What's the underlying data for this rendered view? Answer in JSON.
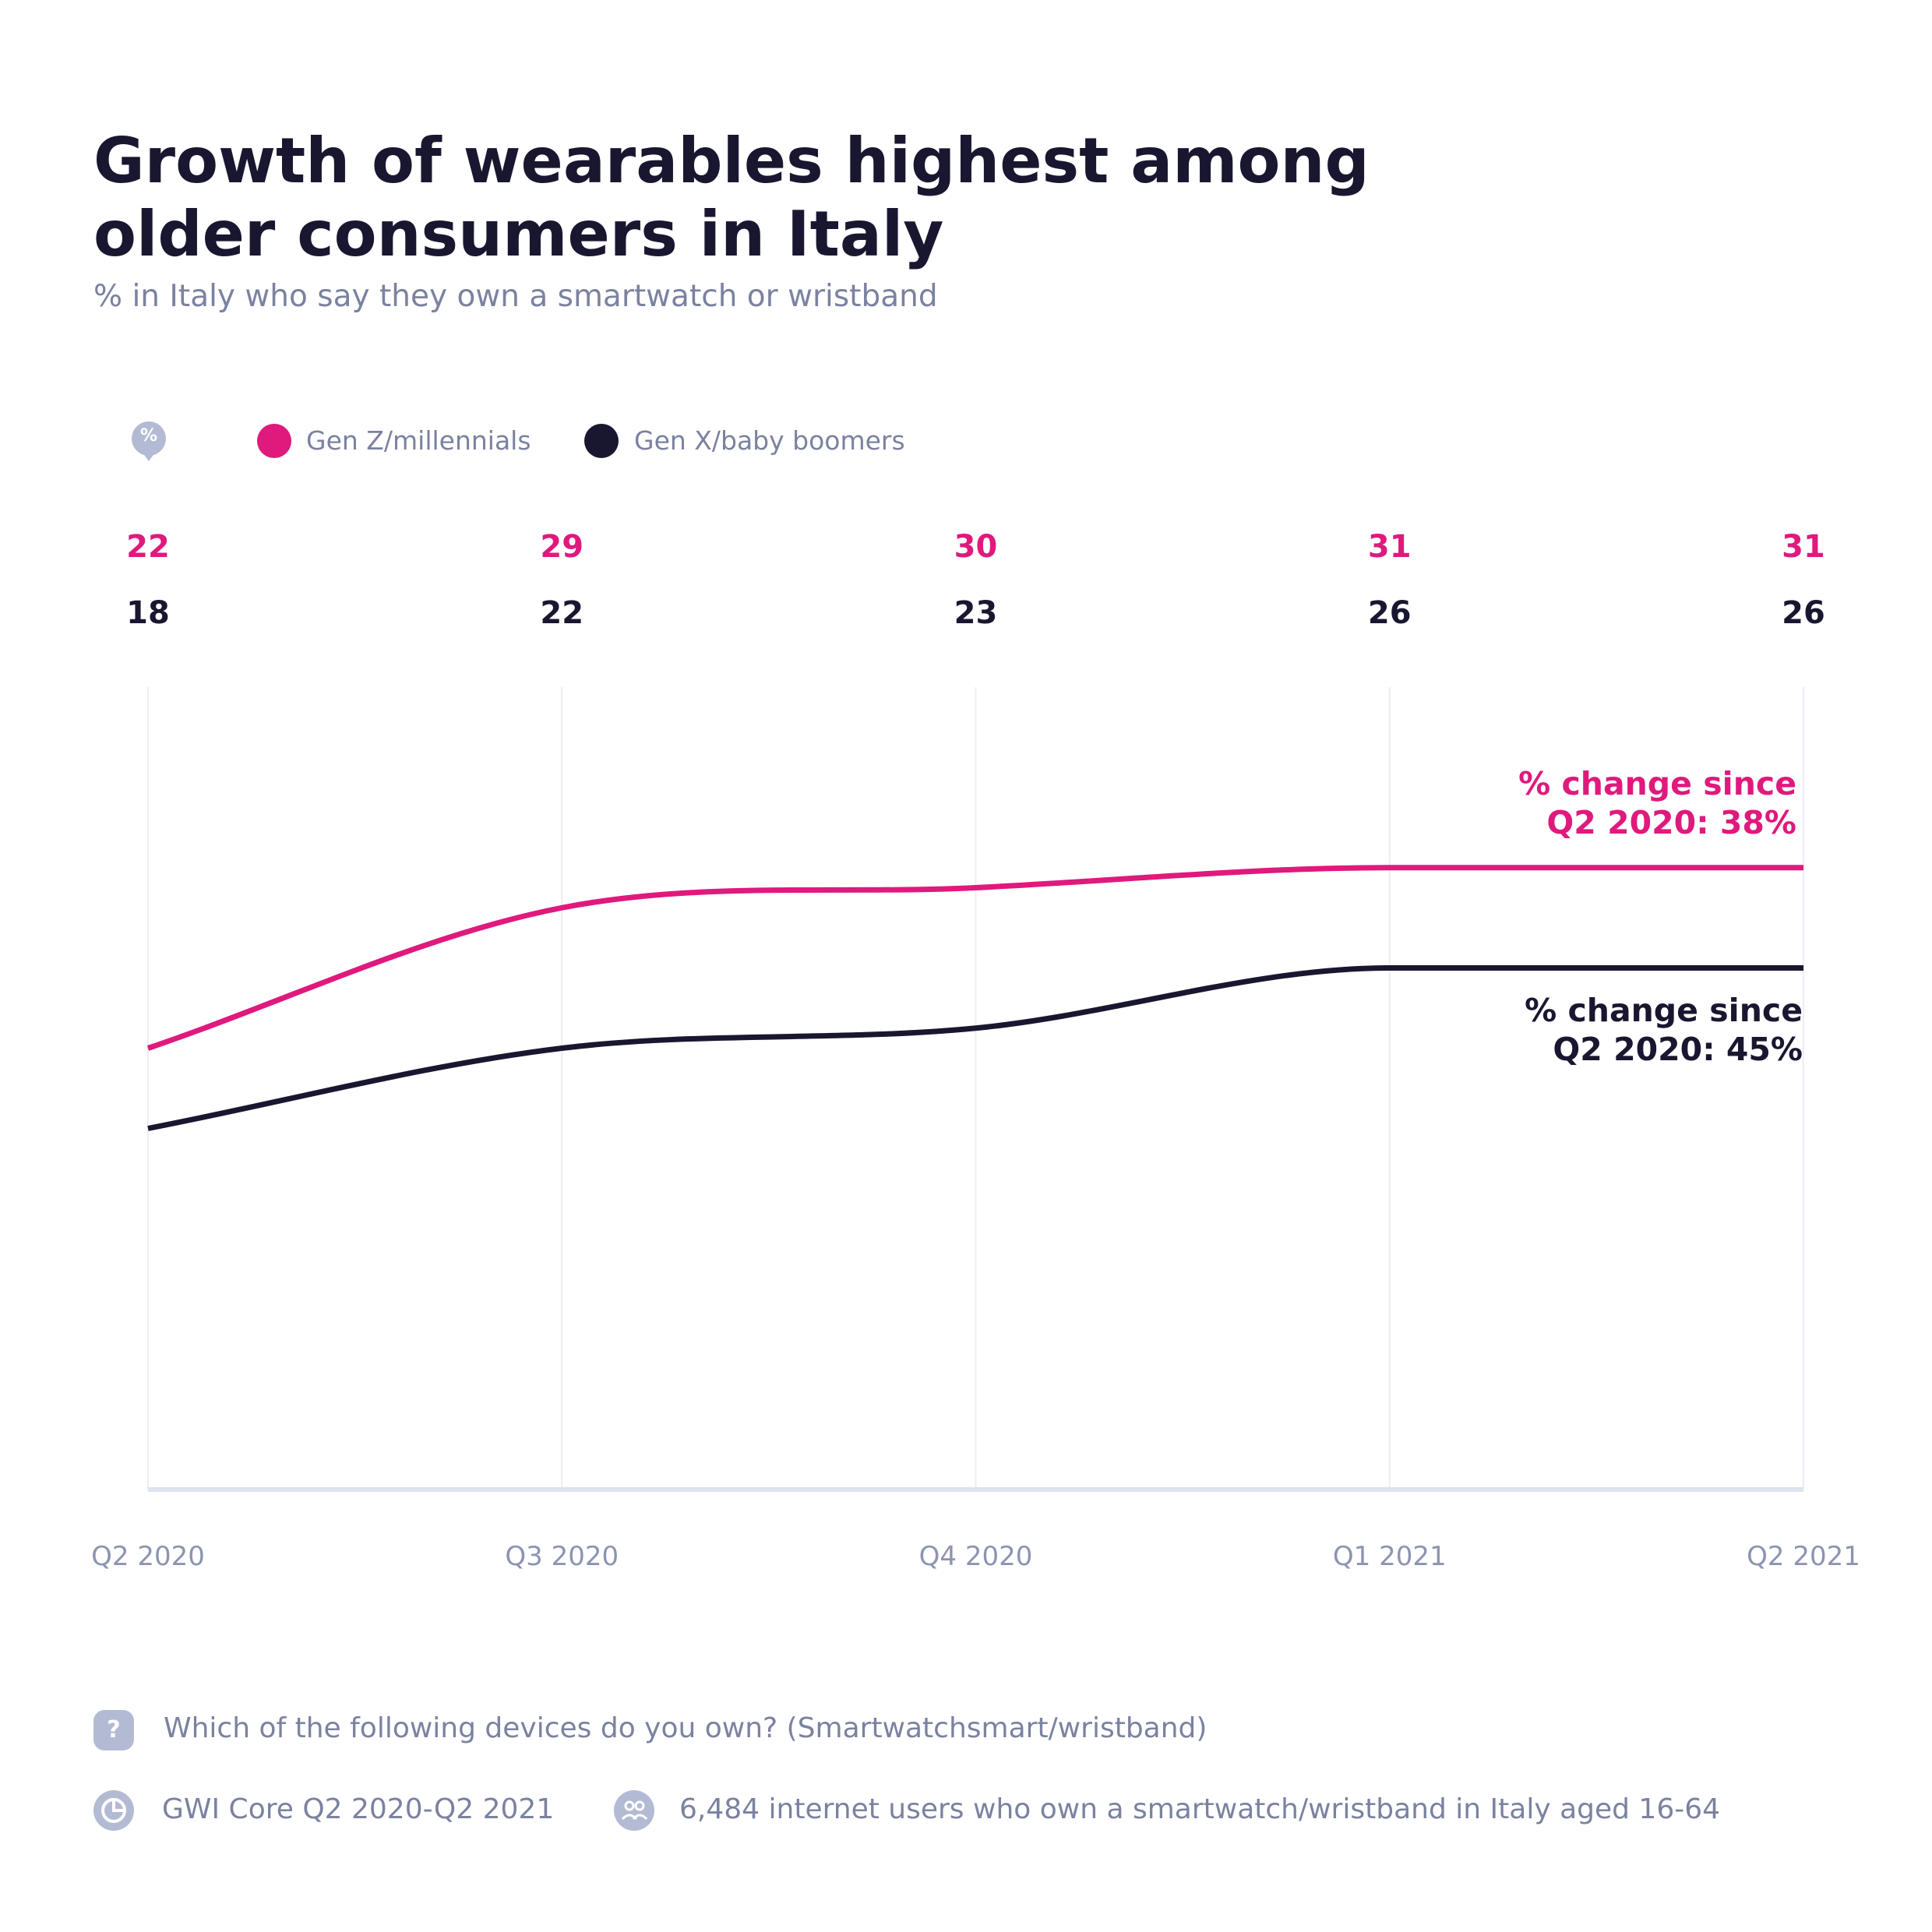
{
  "title": "Growth of wearables highest among older consumers in Italy",
  "subtitle": "% in Italy who say they own a smartwatch or wristband",
  "unit_badge": "%",
  "colors": {
    "gen_z": "#e0197d",
    "gen_x": "#191730",
    "grid": "#eceef4",
    "axis": "#dde3ef",
    "muted": "#7b82a0"
  },
  "legend": [
    {
      "label": "Gen Z/millennials",
      "color": "#e0197d"
    },
    {
      "label": "Gen X/baby boomers",
      "color": "#191730"
    }
  ],
  "chart_data": {
    "type": "line",
    "title": "Growth of wearables highest among older consumers in Italy",
    "subtitle": "% in Italy who say they own a smartwatch or wristband",
    "categories": [
      "Q2 2020",
      "Q3 2020",
      "Q4 2020",
      "Q1 2021",
      "Q2 2021"
    ],
    "series": [
      {
        "name": "Gen Z/millennials",
        "color": "#e0197d",
        "values": [
          22,
          29,
          30,
          31,
          31
        ]
      },
      {
        "name": "Gen X/baby boomers",
        "color": "#191730",
        "values": [
          18,
          22,
          23,
          26,
          26
        ]
      }
    ],
    "ylim": [
      0,
      40
    ],
    "grid": "vertical",
    "legend_position": "top-left",
    "annotations": [
      {
        "series": "Gen Z/millennials",
        "line1": "% change since",
        "line2": "Q2 2020: 38%"
      },
      {
        "series": "Gen X/baby boomers",
        "line1": "% change since",
        "line2": "Q2 2020: 45%"
      }
    ]
  },
  "footer": {
    "question_icon": "?",
    "question": "Which of the following devices do you own? (Smartwatchsmart/wristband)",
    "source": "GWI Core Q2 2020-Q2 2021",
    "base": "6,484 internet users who own a smartwatch/wristband in Italy aged 16-64"
  },
  "icons": {
    "unit": "percent-badge-icon",
    "question": "question-icon",
    "source": "pie-chart-icon",
    "base": "people-icon"
  }
}
